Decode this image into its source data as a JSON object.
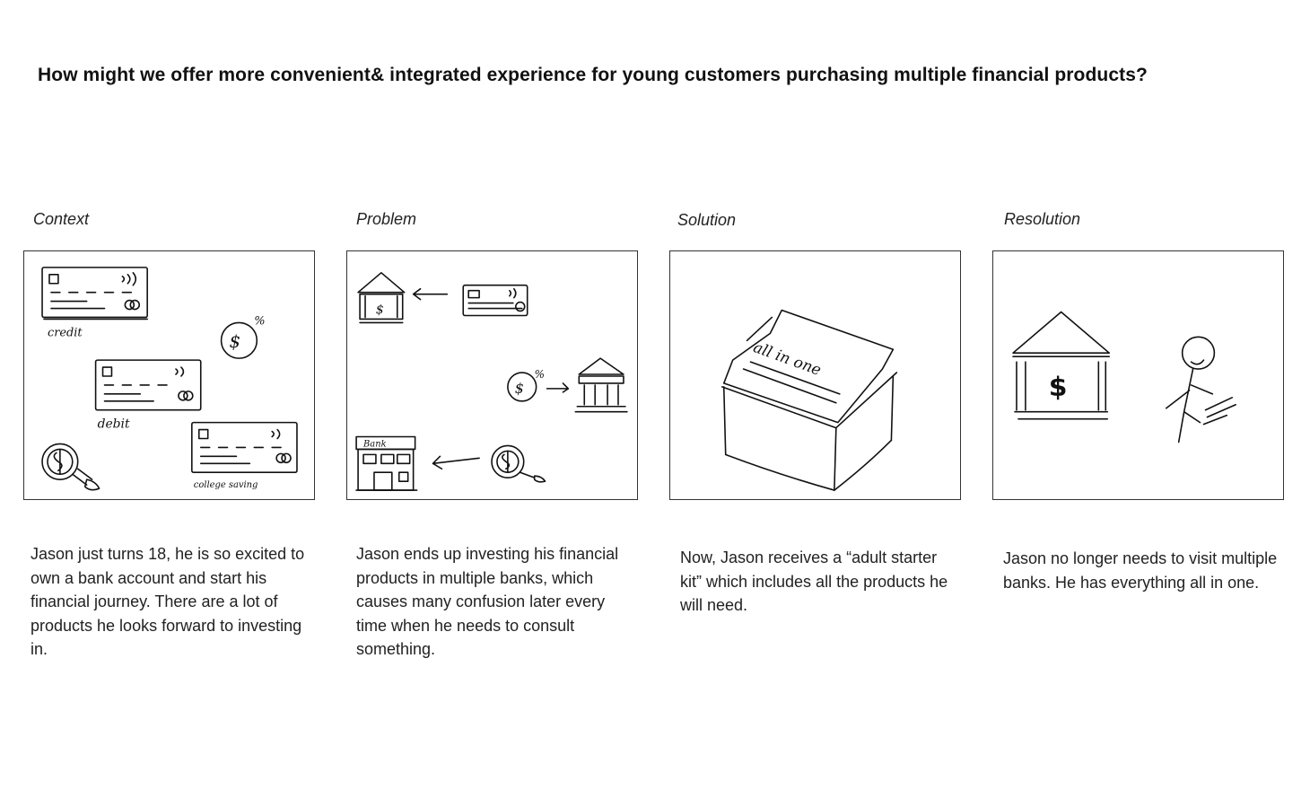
{
  "title": "How might we offer more convenient& integrated experience for young customers purchasing multiple financial products?",
  "panels": [
    {
      "label": "Context",
      "caption": "Jason just turns 18, he is so excited to own a bank account and start his financial journey. There are a lot of products he looks forward to investing in.",
      "sketch_text": [
        "credit",
        "debit",
        "college saving",
        "$",
        "%"
      ]
    },
    {
      "label": "Problem",
      "caption": "Jason ends up investing his financial products in multiple banks, which causes many confusion later every time when he needs to consult something.",
      "sketch_text": [
        "$",
        "%",
        "Bank"
      ]
    },
    {
      "label": "Solution",
      "caption": "Now, Jason receives a “adult starter kit” which includes all the products he will need.",
      "sketch_text": [
        "all in one"
      ]
    },
    {
      "label": "Resolution",
      "caption": "Jason no longer needs to visit multiple banks. He has everything all in one.",
      "sketch_text": [
        "$"
      ]
    }
  ]
}
